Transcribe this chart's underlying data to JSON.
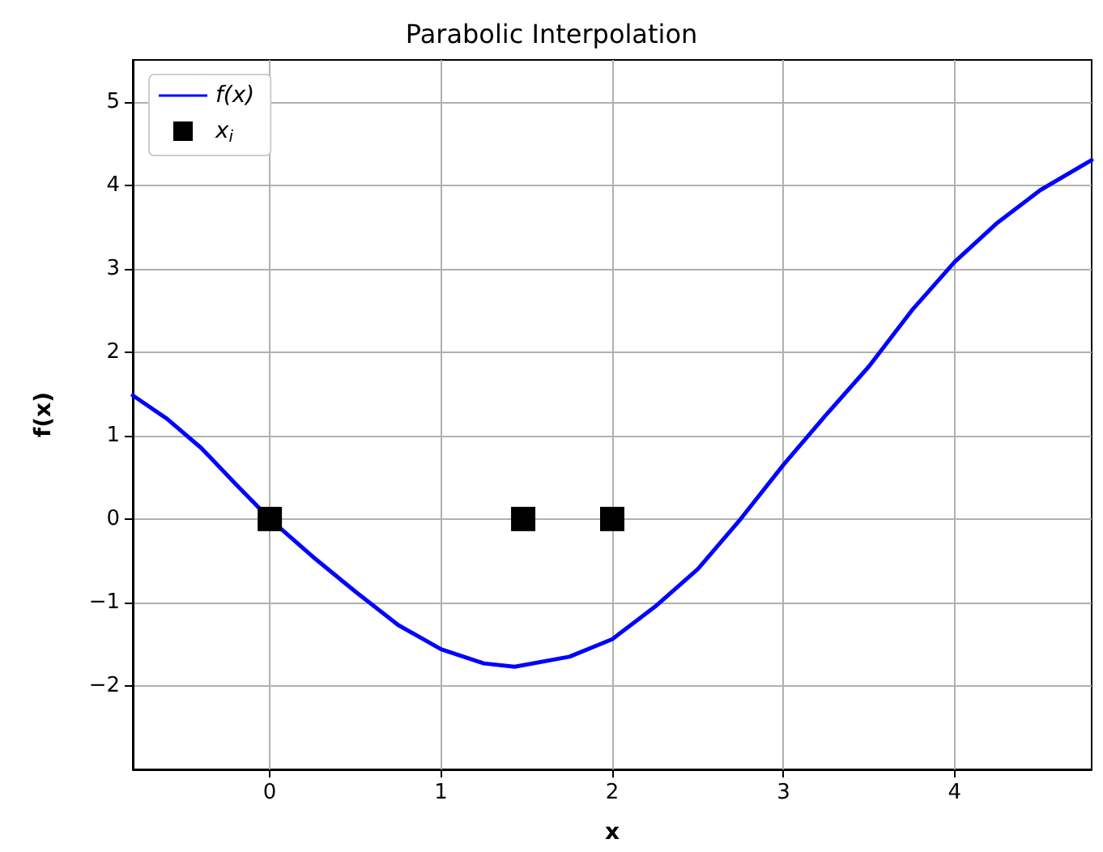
{
  "chart_data": {
    "type": "line",
    "title": "Parabolic Interpolation",
    "xlabel": "x",
    "ylabel": "f(x)",
    "xlim": [
      -0.8,
      4.8
    ],
    "xticks": [
      0,
      1,
      2,
      3,
      4
    ],
    "ylim": [
      -3,
      5.5
    ],
    "yticks": [
      -2,
      -1,
      0,
      1,
      2,
      3,
      4,
      5
    ],
    "grid": true,
    "legend": "top left",
    "series": [
      {
        "name": "f(x)",
        "color": "#0000ff",
        "marker": "none",
        "line_style": "solid",
        "x": [
          -0.8,
          -0.6,
          -0.4,
          -0.2,
          0,
          0.25,
          0.5,
          0.75,
          1,
          1.25,
          1.43,
          1.75,
          2,
          2.25,
          2.5,
          2.75,
          3,
          3.25,
          3.5,
          3.75,
          4,
          4.25,
          4.5,
          4.8
        ],
        "values": [
          1.48,
          1.2,
          0.85,
          0.42,
          0,
          -0.45,
          -0.87,
          -1.27,
          -1.56,
          -1.73,
          -1.77,
          -1.65,
          -1.44,
          -1.05,
          -0.6,
          0,
          0.65,
          1.25,
          1.83,
          2.5,
          3.08,
          3.55,
          3.94,
          4.3
        ]
      },
      {
        "name": "x$_{i}$",
        "type": "scatter",
        "color": "#000000",
        "marker": "square",
        "x": [
          0,
          1.48,
          2
        ],
        "values": [
          0,
          0,
          0
        ]
      }
    ]
  }
}
